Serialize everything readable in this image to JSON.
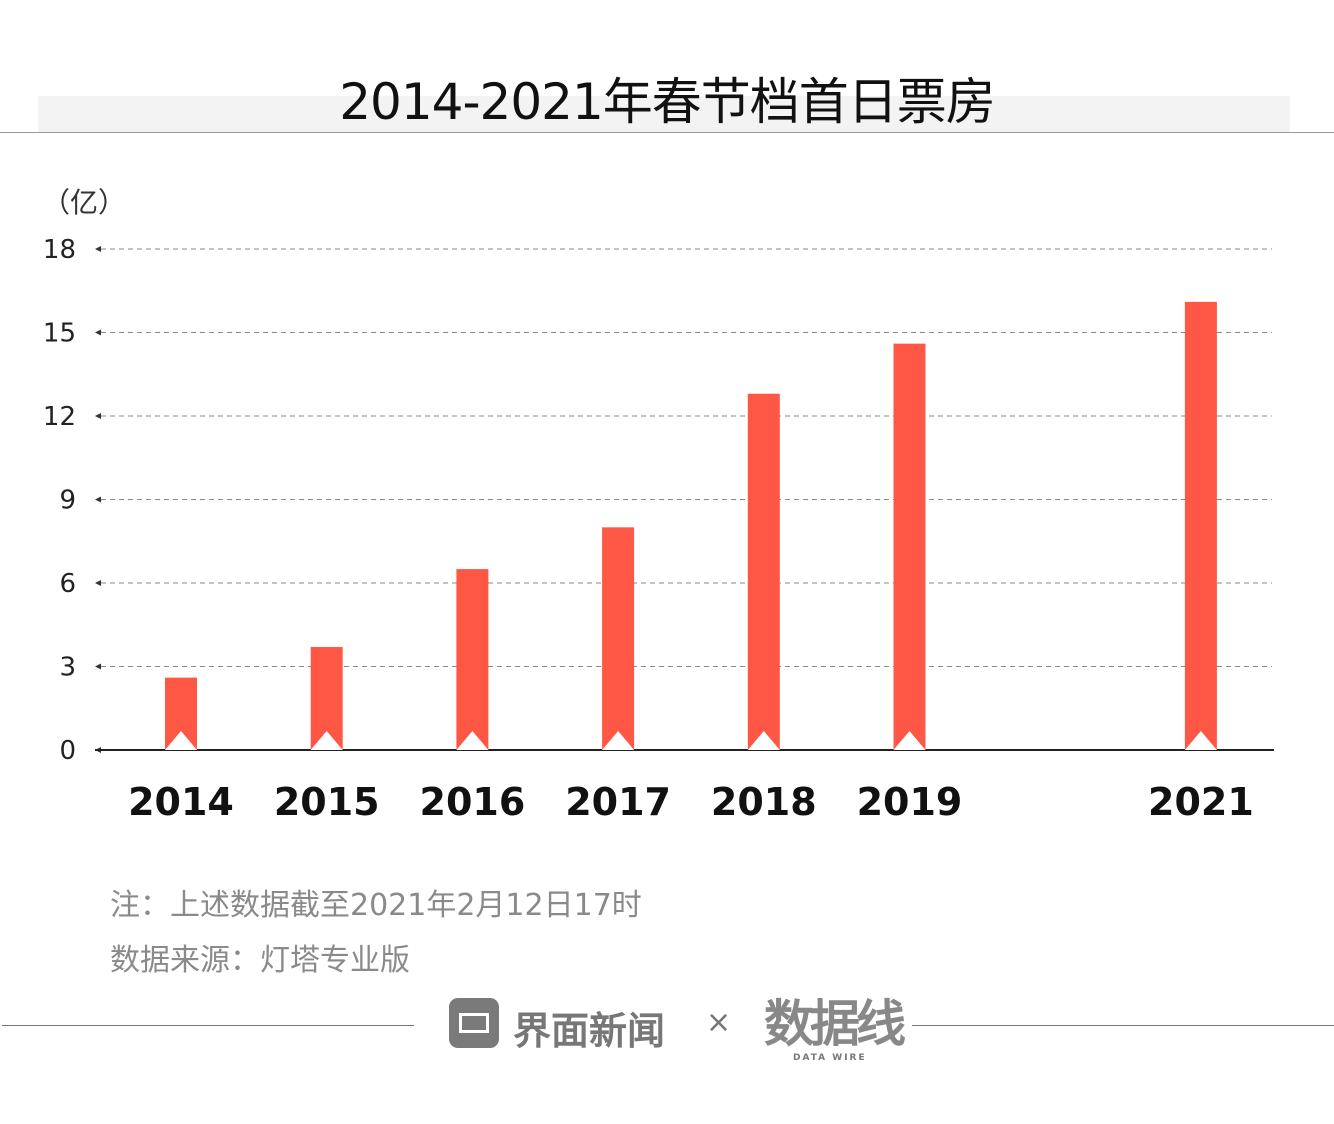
{
  "title": "2014-2021年春节档首日票房",
  "notes": [
    "注：上述数据截至2021年2月12日17时",
    "数据来源：灯塔专业版"
  ],
  "footer": {
    "brand_left": "界面新闻",
    "separator": "×",
    "brand_right": "数据线",
    "brand_right_sub": "DATA WIRE"
  },
  "chart_data": {
    "type": "bar",
    "title": "2014-2021年春节档首日票房",
    "ylabel": "（亿）",
    "xlabel": "",
    "categories": [
      "2014",
      "2015",
      "2016",
      "2017",
      "2018",
      "2019",
      "2021"
    ],
    "values": [
      2.6,
      3.7,
      6.5,
      8.0,
      12.8,
      14.6,
      16.1
    ],
    "ylim": [
      0,
      18
    ],
    "yticks": [
      0,
      3,
      6,
      9,
      12,
      15,
      18
    ],
    "grid": true,
    "bar_color": "#ff5745"
  }
}
